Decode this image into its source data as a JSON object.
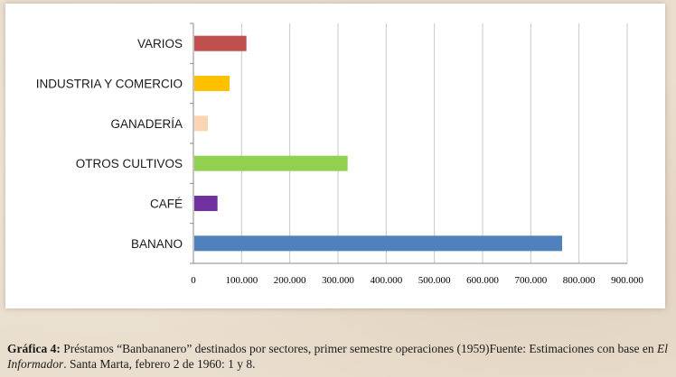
{
  "chart_data": {
    "type": "bar",
    "orientation": "horizontal",
    "categories": [
      "VARIOS",
      "INDUSTRIA Y COMERCIO",
      "GANADERÍA",
      "OTROS CULTIVOS",
      "CAFÉ",
      "BANANO"
    ],
    "values": [
      110000,
      75000,
      30000,
      320000,
      50000,
      765000
    ],
    "colors": [
      "#c0504d",
      "#ffc000",
      "#fbd4b4",
      "#92d050",
      "#7030a0",
      "#4f81bd"
    ],
    "xlim": [
      0,
      900000
    ],
    "ticks": [
      "0",
      "100.000",
      "200.000",
      "300.000",
      "400.000",
      "500.000",
      "600.000",
      "700.000",
      "800.000",
      "900.000"
    ],
    "grid": true,
    "title": "",
    "xlabel": "",
    "ylabel": ""
  },
  "caption": {
    "label": "Gráfica 4:",
    "text1": " Préstamos “Banbananero” destinados por sectores, primer semestre operaciones (1959)Fuente: Estimaciones con base en ",
    "source": "El Informador",
    "text2": ". Santa Marta, febrero 2 de 1960: 1 y 8."
  }
}
